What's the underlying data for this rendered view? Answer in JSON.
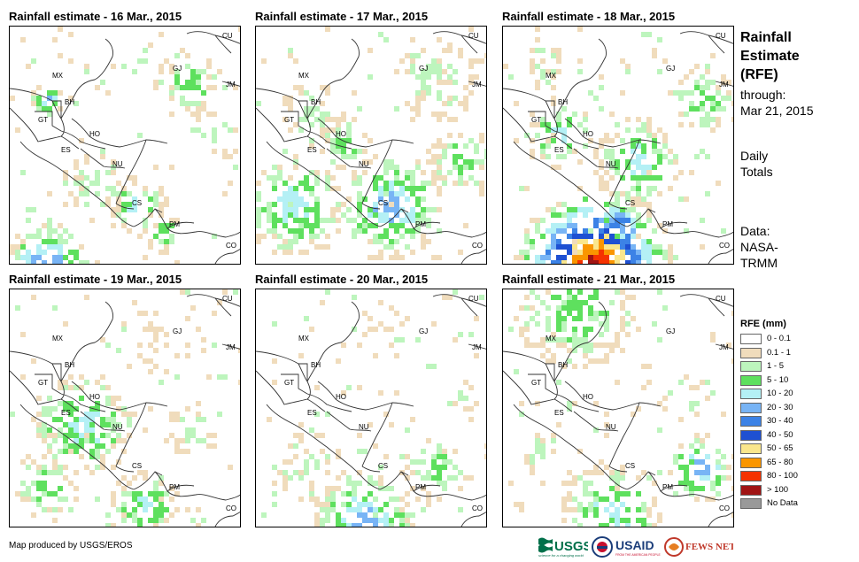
{
  "panels": [
    {
      "title": "Rainfall estimate - 16 Mar., 2015"
    },
    {
      "title": "Rainfall estimate - 17 Mar., 2015"
    },
    {
      "title": "Rainfall estimate - 18 Mar., 2015"
    },
    {
      "title": "Rainfall estimate - 19 Mar., 2015"
    },
    {
      "title": "Rainfall estimate - 20 Mar., 2015"
    },
    {
      "title": "Rainfall estimate - 21 Mar., 2015"
    }
  ],
  "country_labels": [
    "CU",
    "MX",
    "GJ",
    "JM",
    "BH",
    "GT",
    "HO",
    "ES",
    "NU",
    "CS",
    "PM",
    "CO"
  ],
  "side": {
    "title_line1": "Rainfall",
    "title_line2": "Estimate",
    "title_line3": "(RFE)",
    "through_label": "through:",
    "through_date": "Mar 21, 2015",
    "daily_line1": "Daily",
    "daily_line2": "Totals",
    "data_line1": "Data:",
    "data_line2": "NASA-",
    "data_line3": "TRMM"
  },
  "legend": {
    "title": "RFE (mm)",
    "items": [
      {
        "label": "0 - 0.1",
        "color": "#ffffff"
      },
      {
        "label": "0.1 - 1",
        "color": "#f0dcbc"
      },
      {
        "label": "1 - 5",
        "color": "#bdf5bd"
      },
      {
        "label": "5 - 10",
        "color": "#5ee05e"
      },
      {
        "label": "10 - 20",
        "color": "#b4f0f5"
      },
      {
        "label": "20 - 30",
        "color": "#78b4f5"
      },
      {
        "label": "30 - 40",
        "color": "#3c82e6"
      },
      {
        "label": "40 - 50",
        "color": "#1e50d2"
      },
      {
        "label": "50 - 65",
        "color": "#fae68c"
      },
      {
        "label": "65 - 80",
        "color": "#fa9600"
      },
      {
        "label": "80 - 100",
        "color": "#f53200"
      },
      {
        "label": "> 100",
        "color": "#a01414"
      },
      {
        "label": "No Data",
        "color": "#999999"
      }
    ]
  },
  "credit": "Map produced by USGS/EROS",
  "logos": {
    "usgs": "USGS",
    "usgs_tagline": "science for a changing world",
    "usaid": "USAID",
    "usaid_tagline": "FROM THE AMERICAN PEOPLE",
    "fews": "FEWS NET"
  }
}
